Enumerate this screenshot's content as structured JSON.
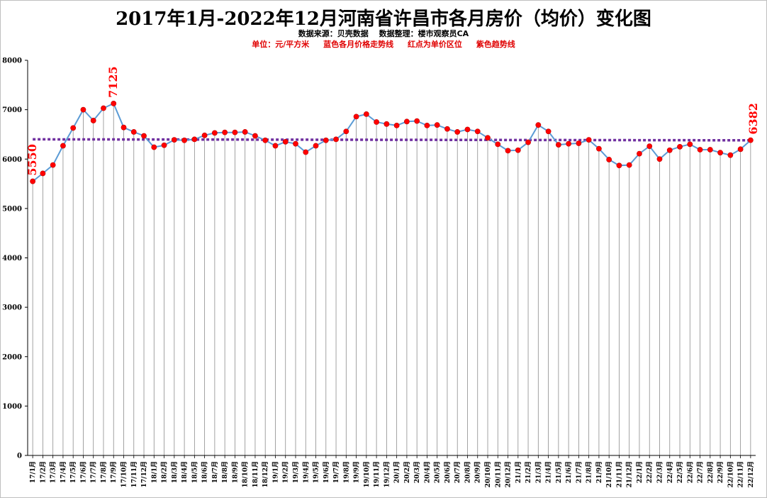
{
  "title": "2017年1月-2022年12月河南省许昌市各月房价（均价）变化图",
  "subtitle": "数据来源：贝壳数据　 数据整理：楼市观察员CA",
  "notes": [
    "单位：元/平方米",
    "蓝色各月价格走势线",
    "红点为单价区位",
    "紫色趋势线"
  ],
  "colors": {
    "line": "#5b9bd5",
    "point": "#ff0000",
    "point_stroke": "#c00000",
    "trend": "#7030a0",
    "grid": "#8c8c8c",
    "label": "#ff0000"
  },
  "chart_data": {
    "type": "line",
    "title": "2017年1月-2022年12月河南省许昌市各月房价（均价）变化图",
    "xlabel": "",
    "ylabel": "",
    "ylim": [
      0,
      8000
    ],
    "yticks": [
      0,
      1000,
      2000,
      3000,
      4000,
      5000,
      6000,
      7000,
      8000
    ],
    "grid": "vertical lines at every month",
    "categories": [
      "17/1月",
      "17/2月",
      "17/3月",
      "17/4月",
      "17/5月",
      "17/6月",
      "17/7月",
      "17/8月",
      "17/9月",
      "17/10月",
      "17/11月",
      "17/12月",
      "18/1月",
      "18/2月",
      "18/3月",
      "18/4月",
      "18/5月",
      "18/6月",
      "18/7月",
      "18/8月",
      "18/9月",
      "18/10月",
      "18/11月",
      "18/12月",
      "19/1月",
      "19/2月",
      "19/3月",
      "19/4月",
      "19/5月",
      "19/6月",
      "19/7月",
      "19/8月",
      "19/9月",
      "19/10月",
      "19/11月",
      "19/12月",
      "20/1月",
      "20/2月",
      "20/3月",
      "20/4月",
      "20/5月",
      "20/6月",
      "20/7月",
      "20/8月",
      "20/9月",
      "20/10月",
      "20/11月",
      "20/12月",
      "21/1月",
      "21/2月",
      "21/3月",
      "21/4月",
      "21/5月",
      "21/6月",
      "21/7月",
      "21/8月",
      "21/9月",
      "21/10月",
      "21/11月",
      "21/12月",
      "22/1月",
      "22/2月",
      "22/3月",
      "22/4月",
      "22/5月",
      "22/6月",
      "22/7月",
      "22/8月",
      "22/9月",
      "22/10月",
      "22/11月",
      "22/12月"
    ],
    "series": [
      {
        "values": [
          5550,
          5710,
          5880,
          6270,
          6630,
          7000,
          6780,
          7030,
          7125,
          6640,
          6550,
          6470,
          6240,
          6280,
          6390,
          6380,
          6400,
          6480,
          6530,
          6540,
          6540,
          6550,
          6470,
          6380,
          6270,
          6350,
          6310,
          6140,
          6270,
          6380,
          6400,
          6560,
          6860,
          6910,
          6750,
          6710,
          6680,
          6760,
          6770,
          6680,
          6690,
          6610,
          6550,
          6600,
          6560,
          6430,
          6300,
          6170,
          6180,
          6340,
          6690,
          6560,
          6290,
          6310,
          6320,
          6390,
          6210,
          5990,
          5870,
          5880,
          6110,
          6260,
          6000,
          6180,
          6250,
          6300,
          6190,
          6190,
          6130,
          6080,
          6200,
          6382
        ]
      }
    ],
    "trend": {
      "value": 6400,
      "end_value": 6380
    },
    "annotations": [
      {
        "index": 0,
        "text": "5550"
      },
      {
        "index": 8,
        "text": "7125"
      },
      {
        "index": 71,
        "text": "6382"
      }
    ]
  }
}
